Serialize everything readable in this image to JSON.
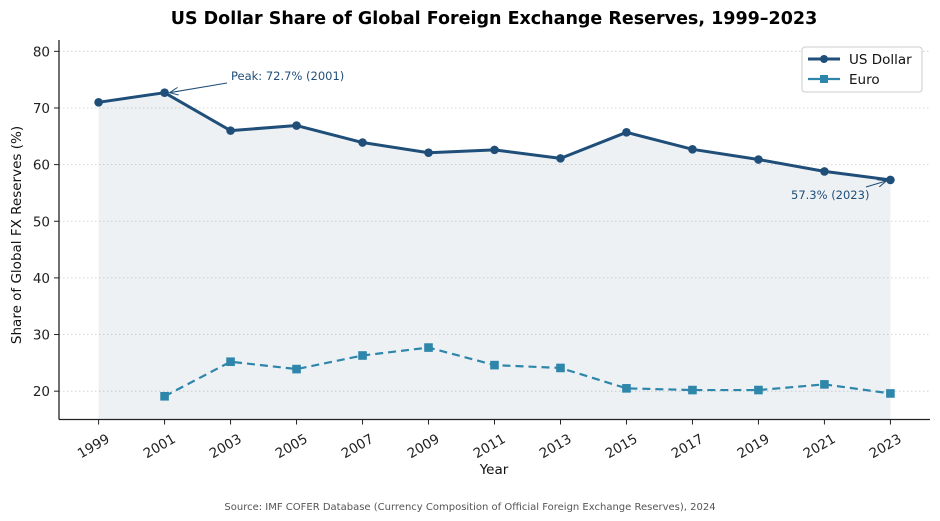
{
  "chart_data": {
    "type": "line",
    "title": "US Dollar Share of Global Foreign Exchange Reserves, 1999–2023",
    "xlabel": "Year",
    "ylabel": "Share of Global FX Reserves (%)",
    "x": [
      1999,
      2001,
      2003,
      2005,
      2007,
      2009,
      2011,
      2013,
      2015,
      2017,
      2019,
      2021,
      2023
    ],
    "x_ticks": [
      "1999",
      "2001",
      "2003",
      "2005",
      "2007",
      "2009",
      "2011",
      "2013",
      "2015",
      "2017",
      "2019",
      "2021",
      "2023"
    ],
    "y_ticks": [
      20,
      30,
      40,
      50,
      60,
      70,
      80
    ],
    "y_tick_labels": [
      "20",
      "30",
      "40",
      "50",
      "60",
      "70",
      "80"
    ],
    "xlim": [
      1997.8,
      2024.2
    ],
    "ylim": [
      15,
      82
    ],
    "grid": "horizontal dotted",
    "legend_position": "top-right",
    "series": [
      {
        "name": "US Dollar",
        "color": "#1f4e79",
        "style": "solid",
        "marker": "circle",
        "fill_below": true,
        "x": [
          1999,
          2001,
          2003,
          2005,
          2007,
          2009,
          2011,
          2013,
          2015,
          2017,
          2019,
          2021,
          2023
        ],
        "values": [
          71.0,
          72.7,
          66.0,
          66.9,
          63.9,
          62.1,
          62.6,
          61.1,
          65.7,
          62.7,
          60.9,
          58.8,
          57.3
        ]
      },
      {
        "name": "Euro",
        "color": "#2e86ab",
        "style": "dashed",
        "marker": "square",
        "fill_below": false,
        "x": [
          2001,
          2003,
          2005,
          2007,
          2009,
          2011,
          2013,
          2015,
          2017,
          2019,
          2021,
          2023
        ],
        "values": [
          19.1,
          25.2,
          23.9,
          26.3,
          27.7,
          24.6,
          24.1,
          20.5,
          20.2,
          20.2,
          21.2,
          19.6
        ]
      }
    ],
    "annotations": [
      {
        "text": "Peak: 72.7% (2001)",
        "target_x": 2001,
        "target_y": 72.7,
        "text_x": 2003,
        "text_y": 75.5
      },
      {
        "text": "57.3% (2023)",
        "target_x": 2023,
        "target_y": 57.3,
        "text_x": 2020,
        "text_y": 54.0
      }
    ],
    "source": "Source: IMF COFER Database (Currency Composition of Official Foreign Exchange Reserves), 2024"
  }
}
